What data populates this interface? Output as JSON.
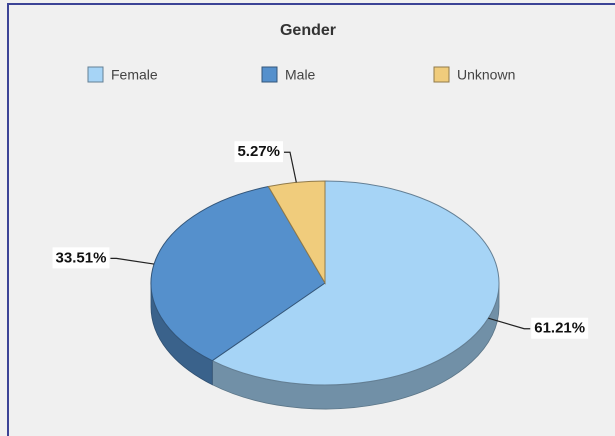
{
  "chart_data": {
    "type": "pie",
    "title": "Gender",
    "categories": [
      "Female",
      "Male",
      "Unknown"
    ],
    "values": [
      61.21,
      33.51,
      5.27
    ],
    "value_labels": [
      "61.21%",
      "33.51%",
      "5.27%"
    ],
    "colors": [
      "#a6d4f6",
      "#5590cc",
      "#f0cc7c"
    ],
    "legend": "top"
  }
}
